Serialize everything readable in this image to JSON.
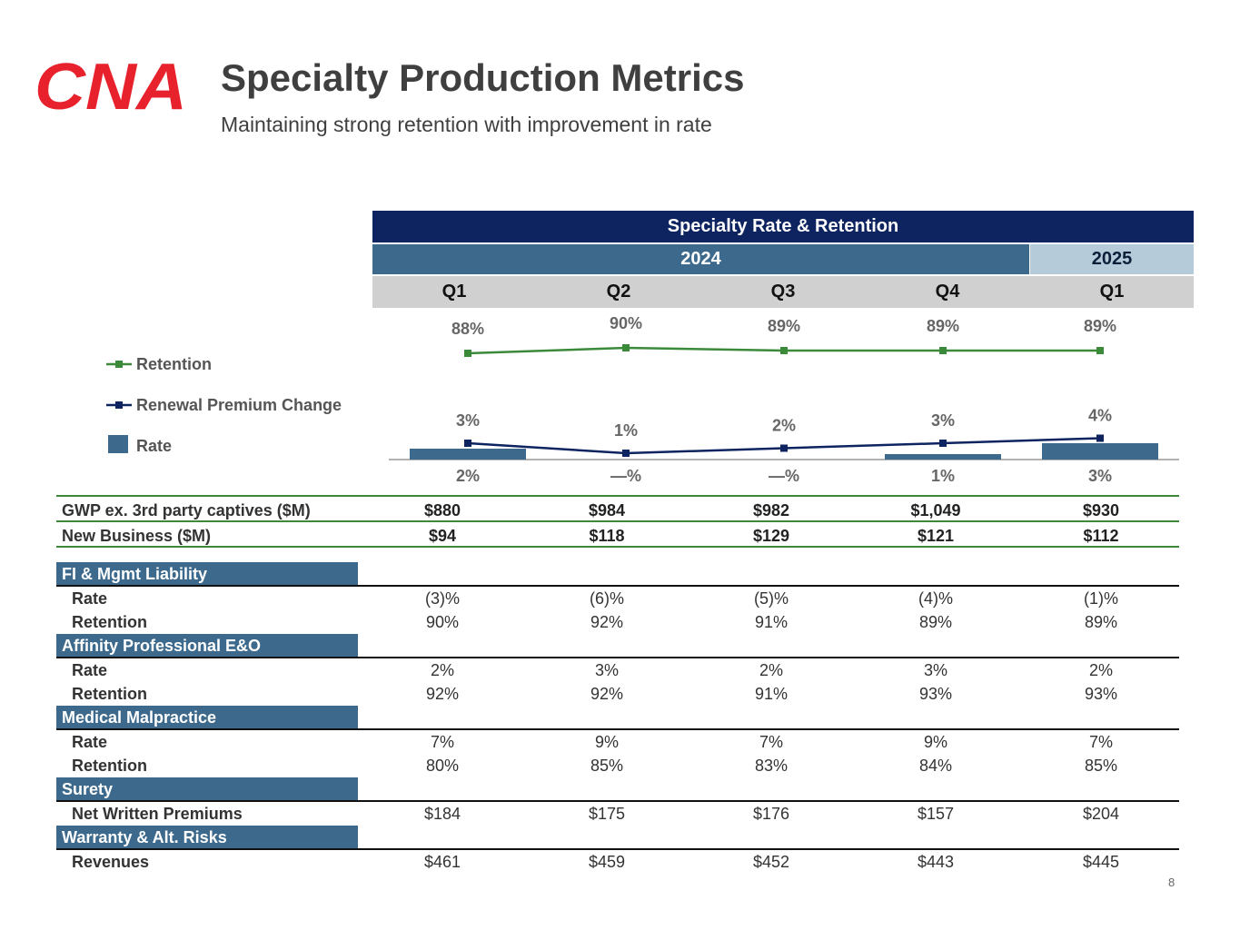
{
  "header": {
    "title": "Specialty Production Metrics",
    "subtitle": "Maintaining strong retention with improvement in rate",
    "logo_text": "CNA"
  },
  "panel": {
    "title": "Specialty Rate & Retention",
    "year_2024": "2024",
    "year_2025": "2025",
    "quarters": [
      "Q1",
      "Q2",
      "Q3",
      "Q4",
      "Q1"
    ]
  },
  "legend": {
    "retention": "Retention",
    "renewal": "Renewal Premium Change",
    "rate": "Rate"
  },
  "colors": {
    "navy": "#0d2460",
    "steel": "#3d6a8c",
    "light_steel": "#b6cbd9",
    "green": "#3a8a3a",
    "red": "#e8222d",
    "gray": "#d0d0d0"
  },
  "chart_data": {
    "type": "line+bar",
    "categories": [
      "Q1 2024",
      "Q2 2024",
      "Q3 2024",
      "Q4 2024",
      "Q1 2025"
    ],
    "series": [
      {
        "name": "Retention",
        "kind": "line",
        "values": [
          88,
          90,
          89,
          89,
          89
        ],
        "labels": [
          "88%",
          "90%",
          "89%",
          "89%",
          "89%"
        ]
      },
      {
        "name": "Renewal Premium Change",
        "kind": "line",
        "values": [
          3,
          1,
          2,
          3,
          4
        ],
        "labels": [
          "3%",
          "1%",
          "2%",
          "3%",
          "4%"
        ]
      },
      {
        "name": "Rate",
        "kind": "bar",
        "values": [
          2,
          0,
          0,
          1,
          3
        ],
        "labels": [
          "2%",
          "—%",
          "—%",
          "1%",
          "3%"
        ]
      }
    ]
  },
  "table": {
    "top_rows": [
      {
        "label": "GWP ex. 3rd party captives ($M)",
        "values": [
          "$880",
          "$984",
          "$982",
          "$1,049",
          "$930"
        ]
      },
      {
        "label": "New Business ($M)",
        "values": [
          "$94",
          "$118",
          "$129",
          "$121",
          "$112"
        ]
      }
    ],
    "segments": [
      {
        "name": "FI & Mgmt Liability",
        "rows": [
          {
            "label": "Rate",
            "values": [
              "(3)%",
              "(6)%",
              "(5)%",
              "(4)%",
              "(1)%"
            ]
          },
          {
            "label": "Retention",
            "values": [
              "90%",
              "92%",
              "91%",
              "89%",
              "89%"
            ]
          }
        ]
      },
      {
        "name": "Affinity Professional E&O",
        "rows": [
          {
            "label": "Rate",
            "values": [
              "2%",
              "3%",
              "2%",
              "3%",
              "2%"
            ]
          },
          {
            "label": "Retention",
            "values": [
              "92%",
              "92%",
              "91%",
              "93%",
              "93%"
            ]
          }
        ]
      },
      {
        "name": "Medical Malpractice",
        "rows": [
          {
            "label": "Rate",
            "values": [
              "7%",
              "9%",
              "7%",
              "9%",
              "7%"
            ]
          },
          {
            "label": "Retention",
            "values": [
              "80%",
              "85%",
              "83%",
              "84%",
              "85%"
            ]
          }
        ]
      },
      {
        "name": "Surety",
        "rows": [
          {
            "label": "Net Written Premiums",
            "values": [
              "$184",
              "$175",
              "$176",
              "$157",
              "$204"
            ]
          }
        ]
      },
      {
        "name": "Warranty & Alt. Risks",
        "rows": [
          {
            "label": "Revenues",
            "values": [
              "$461",
              "$459",
              "$452",
              "$443",
              "$445"
            ]
          }
        ]
      }
    ]
  },
  "page_number": "8"
}
